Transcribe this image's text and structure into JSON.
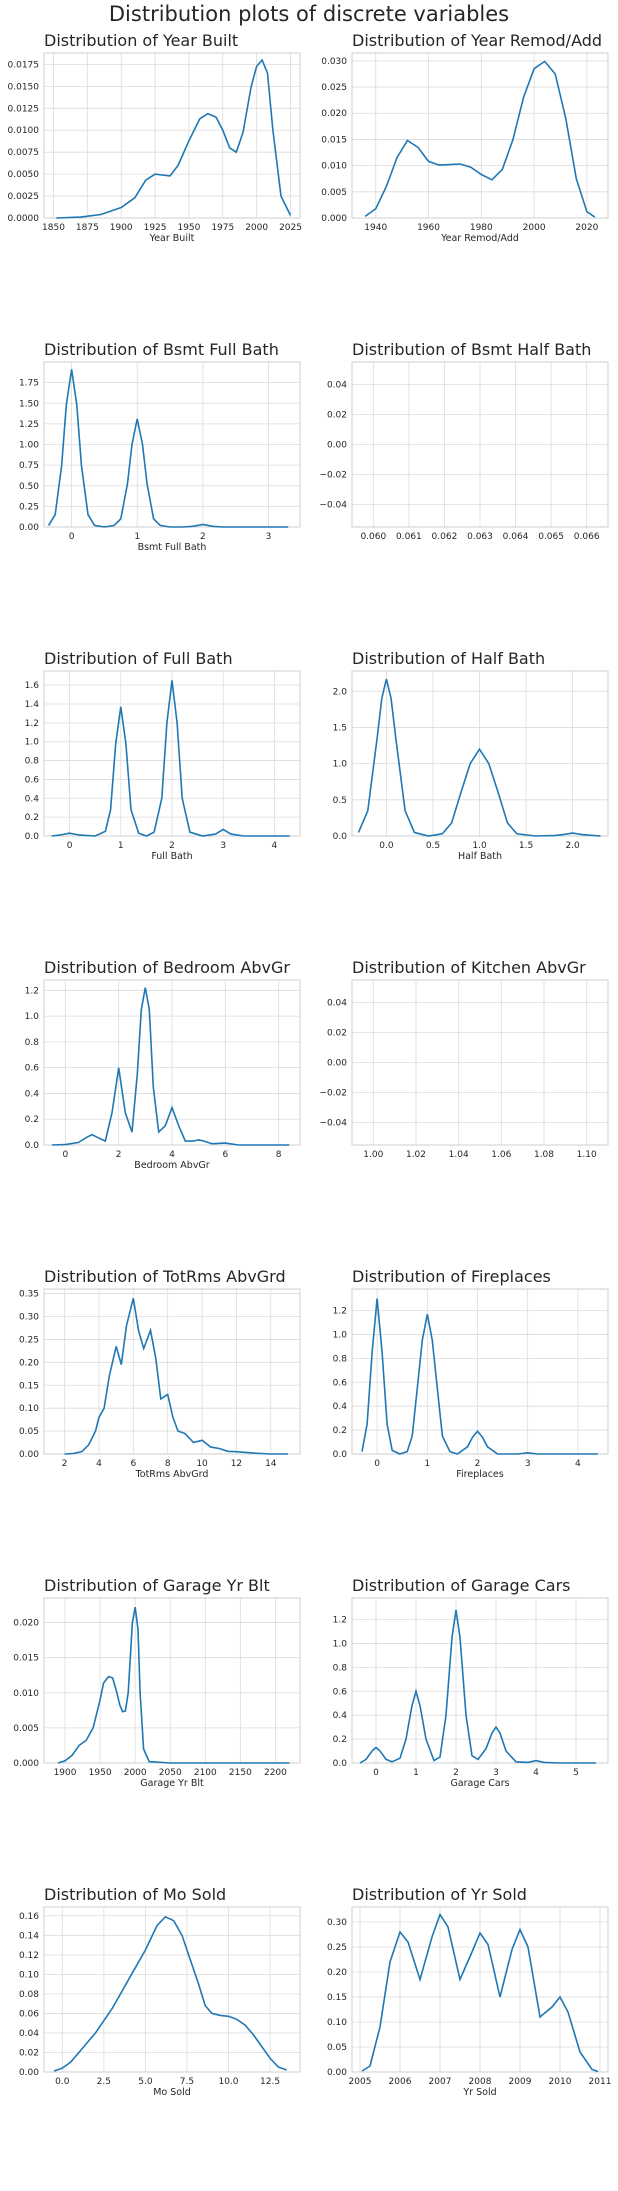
{
  "title": "Distribution plots of discrete variables",
  "colors": {
    "line": "#1f77b4",
    "grid": "#dcdcdc"
  },
  "chart_data": [
    {
      "type": "line",
      "title": "Distribution of Year Built",
      "xlabel": "Year Built",
      "xlim": [
        1843,
        2032
      ],
      "ylim": [
        0,
        0.0188
      ],
      "xticks": [
        1850,
        1875,
        1900,
        1925,
        1950,
        1975,
        2000,
        2025
      ],
      "yticks": [
        0.0,
        0.0025,
        0.005,
        0.0075,
        0.01,
        0.0125,
        0.015,
        0.0175
      ],
      "ytick_labels": [
        "0.0000",
        "0.0025",
        "0.0050",
        "0.0075",
        "0.0100",
        "0.0125",
        "0.0150",
        "0.0175"
      ],
      "x": [
        1852,
        1870,
        1885,
        1900,
        1910,
        1918,
        1925,
        1930,
        1936,
        1942,
        1950,
        1958,
        1964,
        1970,
        1975,
        1980,
        1985,
        1990,
        1996,
        2000,
        2004,
        2008,
        2012,
        2018,
        2025
      ],
      "y": [
        0.0,
        0.0001,
        0.0004,
        0.0012,
        0.0023,
        0.0043,
        0.005,
        0.0049,
        0.0048,
        0.006,
        0.0088,
        0.0113,
        0.0119,
        0.0115,
        0.01,
        0.008,
        0.0075,
        0.0098,
        0.015,
        0.0173,
        0.018,
        0.0165,
        0.01,
        0.0025,
        0.0003
      ]
    },
    {
      "type": "line",
      "title": "Distribution of Year Remod/Add",
      "xlabel": "Year Remod/Add",
      "xlim": [
        1931,
        2028
      ],
      "ylim": [
        0,
        0.0315
      ],
      "xticks": [
        1940,
        1960,
        1980,
        2000,
        2020
      ],
      "yticks": [
        0.0,
        0.005,
        0.01,
        0.015,
        0.02,
        0.025,
        0.03
      ],
      "ytick_labels": [
        "0.000",
        "0.005",
        "0.010",
        "0.015",
        "0.020",
        "0.025",
        "0.030"
      ],
      "x": [
        1936,
        1940,
        1944,
        1948,
        1952,
        1956,
        1960,
        1964,
        1968,
        1972,
        1976,
        1980,
        1984,
        1988,
        1992,
        1996,
        2000,
        2004,
        2008,
        2012,
        2016,
        2020,
        2023
      ],
      "y": [
        0.0003,
        0.0018,
        0.006,
        0.0115,
        0.0148,
        0.0135,
        0.0108,
        0.0101,
        0.0102,
        0.0103,
        0.0097,
        0.0083,
        0.0073,
        0.0093,
        0.015,
        0.023,
        0.0285,
        0.0299,
        0.0275,
        0.019,
        0.0075,
        0.0012,
        0.0002
      ]
    },
    {
      "type": "line",
      "title": "Distribution of Bsmt Full Bath",
      "xlabel": "Bsmt Full Bath",
      "xlim": [
        -0.42,
        3.48
      ],
      "ylim": [
        0,
        2.0
      ],
      "xticks": [
        0,
        1,
        2,
        3
      ],
      "yticks": [
        0.0,
        0.25,
        0.5,
        0.75,
        1.0,
        1.25,
        1.5,
        1.75
      ],
      "ytick_labels": [
        "0.00",
        "0.25",
        "0.50",
        "0.75",
        "1.00",
        "1.25",
        "1.50",
        "1.75"
      ],
      "x": [
        -0.35,
        -0.25,
        -0.15,
        -0.08,
        0.0,
        0.08,
        0.15,
        0.25,
        0.35,
        0.5,
        0.65,
        0.75,
        0.85,
        0.92,
        1.0,
        1.08,
        1.15,
        1.25,
        1.35,
        1.5,
        1.7,
        1.85,
        2.0,
        2.15,
        2.3,
        2.6,
        3.0,
        3.3
      ],
      "y": [
        0.02,
        0.15,
        0.75,
        1.48,
        1.91,
        1.48,
        0.75,
        0.15,
        0.02,
        0.0,
        0.02,
        0.1,
        0.52,
        1.0,
        1.31,
        1.0,
        0.52,
        0.1,
        0.02,
        0.0,
        0.0,
        0.008,
        0.03,
        0.008,
        0.0,
        0.0,
        0.0,
        0.0
      ]
    },
    {
      "type": "line",
      "title": "Distribution of Bsmt Half Bath",
      "xlabel": "",
      "xlim": [
        0.0594,
        0.0666
      ],
      "ylim": [
        -0.055,
        0.055
      ],
      "xticks": [
        0.06,
        0.061,
        0.062,
        0.063,
        0.064,
        0.065,
        0.066
      ],
      "xtick_labels": [
        "0.060",
        "0.061",
        "0.062",
        "0.063",
        "0.064",
        "0.065",
        "0.066"
      ],
      "yticks": [
        -0.04,
        -0.02,
        0.0,
        0.02,
        0.04
      ],
      "ytick_labels": [
        "−0.04",
        "−0.02",
        "0.00",
        "0.02",
        "0.04"
      ],
      "x": [],
      "y": []
    },
    {
      "type": "line",
      "title": "Distribution of Full Bath",
      "xlabel": "Full Bath",
      "xlim": [
        -0.5,
        4.5
      ],
      "ylim": [
        0,
        1.75
      ],
      "xticks": [
        0,
        1,
        2,
        3,
        4
      ],
      "yticks": [
        0.0,
        0.2,
        0.4,
        0.6,
        0.8,
        1.0,
        1.2,
        1.4,
        1.6
      ],
      "ytick_labels": [
        "0.0",
        "0.2",
        "0.4",
        "0.6",
        "0.8",
        "1.0",
        "1.2",
        "1.4",
        "1.6"
      ],
      "x": [
        -0.35,
        -0.2,
        0.0,
        0.2,
        0.5,
        0.7,
        0.8,
        0.9,
        1.0,
        1.1,
        1.2,
        1.35,
        1.5,
        1.65,
        1.8,
        1.9,
        2.0,
        2.1,
        2.2,
        2.35,
        2.6,
        2.85,
        3.0,
        3.15,
        3.4,
        3.8,
        4.3
      ],
      "y": [
        0.0,
        0.01,
        0.03,
        0.01,
        0.0,
        0.05,
        0.28,
        0.98,
        1.37,
        0.98,
        0.28,
        0.03,
        0.0,
        0.04,
        0.4,
        1.2,
        1.65,
        1.2,
        0.4,
        0.04,
        0.0,
        0.02,
        0.07,
        0.02,
        0.0,
        0.0,
        0.0
      ]
    },
    {
      "type": "line",
      "title": "Distribution of Half Bath",
      "xlabel": "Half Bath",
      "xlim": [
        -0.37,
        2.38
      ],
      "ylim": [
        0,
        2.28
      ],
      "xticks": [
        0.0,
        0.5,
        1.0,
        1.5,
        2.0
      ],
      "xtick_labels": [
        "0.0",
        "0.5",
        "1.0",
        "1.5",
        "2.0"
      ],
      "yticks": [
        0.0,
        0.5,
        1.0,
        1.5,
        2.0
      ],
      "ytick_labels": [
        "0.0",
        "0.5",
        "1.0",
        "1.5",
        "2.0"
      ],
      "x": [
        -0.3,
        -0.2,
        -0.1,
        -0.05,
        0.0,
        0.05,
        0.1,
        0.2,
        0.3,
        0.45,
        0.6,
        0.7,
        0.8,
        0.9,
        1.0,
        1.1,
        1.2,
        1.3,
        1.4,
        1.6,
        1.8,
        1.9,
        2.0,
        2.1,
        2.3
      ],
      "y": [
        0.05,
        0.35,
        1.35,
        1.9,
        2.17,
        1.9,
        1.35,
        0.35,
        0.05,
        0.0,
        0.03,
        0.18,
        0.6,
        1.0,
        1.2,
        1.0,
        0.6,
        0.18,
        0.03,
        0.0,
        0.005,
        0.02,
        0.04,
        0.02,
        0.0
      ]
    },
    {
      "type": "line",
      "title": "Distribution of Bedroom AbvGr",
      "xlabel": "Bedroom AbvGr",
      "xlim": [
        -0.8,
        8.8
      ],
      "ylim": [
        0,
        1.28
      ],
      "xticks": [
        0,
        2,
        4,
        6,
        8
      ],
      "yticks": [
        0.0,
        0.2,
        0.4,
        0.6,
        0.8,
        1.0,
        1.2
      ],
      "ytick_labels": [
        "0.0",
        "0.2",
        "0.4",
        "0.6",
        "0.8",
        "1.0",
        "1.2"
      ],
      "x": [
        -0.5,
        0.0,
        0.5,
        0.8,
        1.0,
        1.2,
        1.5,
        1.75,
        2.0,
        2.25,
        2.5,
        2.7,
        2.85,
        3.0,
        3.15,
        3.3,
        3.5,
        3.75,
        4.0,
        4.25,
        4.5,
        4.8,
        5.0,
        5.2,
        5.5,
        6.0,
        6.5,
        7.5,
        8.4
      ],
      "y": [
        0.0,
        0.003,
        0.02,
        0.06,
        0.08,
        0.06,
        0.03,
        0.25,
        0.6,
        0.25,
        0.1,
        0.55,
        1.05,
        1.22,
        1.05,
        0.45,
        0.1,
        0.15,
        0.29,
        0.15,
        0.03,
        0.03,
        0.04,
        0.03,
        0.01,
        0.015,
        0.0,
        0.0,
        0.0
      ]
    },
    {
      "type": "line",
      "title": "Distribution of Kitchen AbvGr",
      "xlabel": "",
      "xlim": [
        0.99,
        1.11
      ],
      "ylim": [
        -0.055,
        0.055
      ],
      "xticks": [
        1.0,
        1.02,
        1.04,
        1.06,
        1.08,
        1.1
      ],
      "xtick_labels": [
        "1.00",
        "1.02",
        "1.04",
        "1.06",
        "1.08",
        "1.10"
      ],
      "yticks": [
        -0.04,
        -0.02,
        0.0,
        0.02,
        0.04
      ],
      "ytick_labels": [
        "−0.04",
        "−0.02",
        "0.00",
        "0.02",
        "0.04"
      ],
      "x": [],
      "y": []
    },
    {
      "type": "line",
      "title": "Distribution of TotRms AbvGrd",
      "xlabel": "TotRms AbvGrd",
      "xlim": [
        0.8,
        15.7
      ],
      "ylim": [
        0,
        0.36
      ],
      "xticks": [
        2,
        4,
        6,
        8,
        10,
        12,
        14
      ],
      "yticks": [
        0.0,
        0.05,
        0.1,
        0.15,
        0.2,
        0.25,
        0.3,
        0.35
      ],
      "ytick_labels": [
        "0.00",
        "0.05",
        "0.10",
        "0.15",
        "0.20",
        "0.25",
        "0.30",
        "0.35"
      ],
      "x": [
        2.0,
        2.5,
        3.0,
        3.4,
        3.8,
        4.0,
        4.3,
        4.6,
        5.0,
        5.3,
        5.6,
        6.0,
        6.3,
        6.6,
        7.0,
        7.3,
        7.6,
        8.0,
        8.3,
        8.6,
        9.0,
        9.5,
        10.0,
        10.5,
        11.0,
        11.5,
        12.0,
        13.0,
        14.0,
        15.0
      ],
      "y": [
        0.0,
        0.001,
        0.005,
        0.02,
        0.05,
        0.08,
        0.1,
        0.17,
        0.235,
        0.195,
        0.28,
        0.34,
        0.27,
        0.23,
        0.27,
        0.21,
        0.12,
        0.13,
        0.08,
        0.05,
        0.045,
        0.025,
        0.03,
        0.015,
        0.012,
        0.006,
        0.005,
        0.002,
        0.0,
        0.0
      ]
    },
    {
      "type": "line",
      "title": "Distribution of Fireplaces",
      "xlabel": "Fireplaces",
      "xlim": [
        -0.5,
        4.6
      ],
      "ylim": [
        0,
        1.38
      ],
      "xticks": [
        0,
        1,
        2,
        3,
        4
      ],
      "yticks": [
        0.0,
        0.2,
        0.4,
        0.6,
        0.8,
        1.0,
        1.2
      ],
      "ytick_labels": [
        "0.0",
        "0.2",
        "0.4",
        "0.6",
        "0.8",
        "1.0",
        "1.2"
      ],
      "x": [
        -0.3,
        -0.2,
        -0.1,
        0.0,
        0.1,
        0.2,
        0.3,
        0.45,
        0.6,
        0.7,
        0.8,
        0.9,
        1.0,
        1.1,
        1.2,
        1.3,
        1.45,
        1.6,
        1.8,
        1.9,
        2.0,
        2.1,
        2.2,
        2.4,
        2.8,
        3.0,
        3.2,
        3.6,
        4.0,
        4.4
      ],
      "y": [
        0.02,
        0.25,
        0.85,
        1.3,
        0.85,
        0.25,
        0.03,
        0.0,
        0.02,
        0.15,
        0.55,
        0.95,
        1.17,
        0.95,
        0.55,
        0.15,
        0.02,
        0.0,
        0.06,
        0.14,
        0.19,
        0.14,
        0.06,
        0.0,
        0.0,
        0.01,
        0.0,
        0.0,
        0.0,
        0.0
      ]
    },
    {
      "type": "line",
      "title": "Distribution of Garage Yr Blt",
      "xlabel": "Garage Yr Blt",
      "xlim": [
        1870,
        2235
      ],
      "ylim": [
        0,
        0.0235
      ],
      "xticks": [
        1900,
        1950,
        2000,
        2050,
        2100,
        2150,
        2200
      ],
      "yticks": [
        0.0,
        0.005,
        0.01,
        0.015,
        0.02
      ],
      "ytick_labels": [
        "0.000",
        "0.005",
        "0.010",
        "0.015",
        "0.020"
      ],
      "x": [
        1890,
        1900,
        1910,
        1920,
        1930,
        1940,
        1950,
        1955,
        1962,
        1968,
        1974,
        1978,
        1982,
        1986,
        1990,
        1993,
        1996,
        2000,
        2004,
        2007,
        2012,
        2020,
        2050,
        2100,
        2150,
        2200,
        2220
      ],
      "y": [
        0.0,
        0.0003,
        0.0011,
        0.0025,
        0.0032,
        0.005,
        0.009,
        0.0114,
        0.0123,
        0.0121,
        0.01,
        0.0083,
        0.0073,
        0.0074,
        0.01,
        0.015,
        0.02,
        0.0222,
        0.019,
        0.01,
        0.002,
        0.0002,
        0.0,
        0.0,
        0.0,
        0.0,
        0.0
      ]
    },
    {
      "type": "line",
      "title": "Distribution of Garage Cars",
      "xlabel": "Garage Cars",
      "xlim": [
        -0.6,
        5.8
      ],
      "ylim": [
        0,
        1.38
      ],
      "xticks": [
        0,
        1,
        2,
        3,
        4,
        5
      ],
      "yticks": [
        0.0,
        0.2,
        0.4,
        0.6,
        0.8,
        1.0,
        1.2
      ],
      "ytick_labels": [
        "0.0",
        "0.2",
        "0.4",
        "0.6",
        "0.8",
        "1.0",
        "1.2"
      ],
      "x": [
        -0.4,
        -0.25,
        -0.1,
        0.0,
        0.1,
        0.25,
        0.4,
        0.6,
        0.75,
        0.9,
        1.0,
        1.1,
        1.25,
        1.45,
        1.6,
        1.75,
        1.9,
        2.0,
        2.1,
        2.25,
        2.4,
        2.55,
        2.75,
        2.9,
        3.0,
        3.1,
        3.25,
        3.5,
        3.8,
        4.0,
        4.2,
        4.6,
        5.0,
        5.5
      ],
      "y": [
        0.0,
        0.03,
        0.1,
        0.13,
        0.1,
        0.03,
        0.01,
        0.04,
        0.2,
        0.48,
        0.6,
        0.48,
        0.2,
        0.02,
        0.05,
        0.4,
        1.05,
        1.28,
        1.05,
        0.4,
        0.06,
        0.03,
        0.12,
        0.25,
        0.3,
        0.25,
        0.1,
        0.01,
        0.005,
        0.02,
        0.005,
        0.0,
        0.0,
        0.0
      ]
    },
    {
      "type": "line",
      "title": "Distribution of Mo Sold",
      "xlabel": "Mo Sold",
      "xlim": [
        -1.1,
        14.3
      ],
      "ylim": [
        0,
        0.169
      ],
      "xticks": [
        0,
        2.5,
        5,
        7.5,
        10,
        12.5
      ],
      "xtick_labels": [
        "0.0",
        "2.5",
        "5.0",
        "7.5",
        "10.0",
        "12.5"
      ],
      "yticks": [
        0.0,
        0.02,
        0.04,
        0.06,
        0.08,
        0.1,
        0.12,
        0.14,
        0.16
      ],
      "ytick_labels": [
        "0.00",
        "0.02",
        "0.04",
        "0.06",
        "0.08",
        "0.10",
        "0.12",
        "0.14",
        "0.16"
      ],
      "x": [
        -0.5,
        0.0,
        0.5,
        1.0,
        2.0,
        3.0,
        4.0,
        5.0,
        5.7,
        6.2,
        6.7,
        7.2,
        7.7,
        8.2,
        8.6,
        9.0,
        9.5,
        10.0,
        10.5,
        11.0,
        11.5,
        12.0,
        12.5,
        13.0,
        13.5
      ],
      "y": [
        0.001,
        0.004,
        0.01,
        0.02,
        0.04,
        0.065,
        0.095,
        0.125,
        0.15,
        0.159,
        0.155,
        0.14,
        0.115,
        0.09,
        0.068,
        0.06,
        0.058,
        0.057,
        0.054,
        0.048,
        0.038,
        0.026,
        0.014,
        0.005,
        0.002
      ]
    },
    {
      "type": "line",
      "title": "Distribution of Yr Sold",
      "xlabel": "Yr Sold",
      "xlim": [
        2004.8,
        2011.2
      ],
      "ylim": [
        0,
        0.33
      ],
      "xticks": [
        2005,
        2006,
        2007,
        2008,
        2009,
        2010,
        2011
      ],
      "yticks": [
        0.0,
        0.05,
        0.1,
        0.15,
        0.2,
        0.25,
        0.3
      ],
      "ytick_labels": [
        "0.00",
        "0.05",
        "0.10",
        "0.15",
        "0.20",
        "0.25",
        "0.30"
      ],
      "x": [
        2005.05,
        2005.25,
        2005.5,
        2005.75,
        2006.0,
        2006.2,
        2006.5,
        2006.8,
        2007.0,
        2007.2,
        2007.5,
        2007.8,
        2008.0,
        2008.2,
        2008.5,
        2008.8,
        2009.0,
        2009.2,
        2009.5,
        2009.8,
        2010.0,
        2010.2,
        2010.5,
        2010.8,
        2010.95
      ],
      "y": [
        0.002,
        0.012,
        0.09,
        0.22,
        0.28,
        0.26,
        0.185,
        0.27,
        0.315,
        0.29,
        0.185,
        0.24,
        0.278,
        0.255,
        0.15,
        0.245,
        0.285,
        0.25,
        0.11,
        0.13,
        0.15,
        0.12,
        0.04,
        0.005,
        0.001
      ]
    }
  ]
}
